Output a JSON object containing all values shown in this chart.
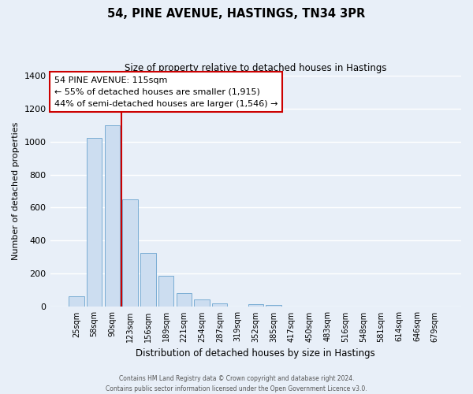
{
  "title": "54, PINE AVENUE, HASTINGS, TN34 3PR",
  "subtitle": "Size of property relative to detached houses in Hastings",
  "xlabel": "Distribution of detached houses by size in Hastings",
  "ylabel": "Number of detached properties",
  "bar_labels": [
    "25sqm",
    "58sqm",
    "90sqm",
    "123sqm",
    "156sqm",
    "189sqm",
    "221sqm",
    "254sqm",
    "287sqm",
    "319sqm",
    "352sqm",
    "385sqm",
    "417sqm",
    "450sqm",
    "483sqm",
    "516sqm",
    "548sqm",
    "581sqm",
    "614sqm",
    "646sqm",
    "679sqm"
  ],
  "bar_values": [
    65,
    1020,
    1100,
    650,
    325,
    190,
    85,
    45,
    20,
    0,
    15,
    10,
    0,
    0,
    0,
    0,
    0,
    0,
    0,
    0,
    0
  ],
  "bar_color": "#ccddf0",
  "bar_edge_color": "#7aadd4",
  "bg_color": "#e8eff8",
  "grid_color": "#ffffff",
  "vline_x": 2.5,
  "vline_color": "#cc0000",
  "ylim": [
    0,
    1400
  ],
  "yticks": [
    0,
    200,
    400,
    600,
    800,
    1000,
    1200,
    1400
  ],
  "annotation_title": "54 PINE AVENUE: 115sqm",
  "annotation_line1": "← 55% of detached houses are smaller (1,915)",
  "annotation_line2": "44% of semi-detached houses are larger (1,546) →",
  "annotation_box_color": "#ffffff",
  "annotation_box_edge_color": "#cc0000",
  "footer1": "Contains HM Land Registry data © Crown copyright and database right 2024.",
  "footer2": "Contains public sector information licensed under the Open Government Licence v3.0."
}
